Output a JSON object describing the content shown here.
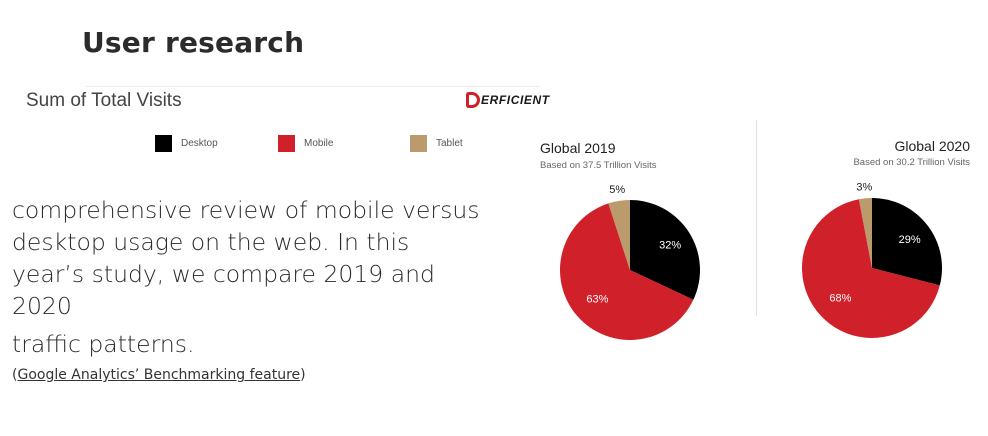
{
  "slide": {
    "title": "User research",
    "chart_heading": "Sum of Total Visits",
    "logo_text": "ERFICIENT",
    "body_lines": [
      "comprehensive review of mobile versus",
      "desktop usage on the web. In this",
      "year’s study, we compare 2019 and 2020",
      "traffic patterns."
    ],
    "source_open": "(",
    "source_link": "Google Analytics’ Benchmarking feature",
    "source_close": ")"
  },
  "legend": [
    {
      "label": "Desktop",
      "color": "#000000"
    },
    {
      "label": "Mobile",
      "color": "#d0202a"
    },
    {
      "label": "Tablet",
      "color": "#bb9a6b"
    }
  ],
  "chart_data": [
    {
      "type": "pie",
      "title": "Global 2019",
      "subtitle": "Based on 37.5 Trillion Visits",
      "labels": [
        "Desktop",
        "Mobile",
        "Tablet"
      ],
      "values": [
        32,
        63,
        5
      ],
      "value_labels": [
        "32%",
        "63%",
        "5%"
      ],
      "colors": [
        "#000000",
        "#d0202a",
        "#bb9a6b"
      ]
    },
    {
      "type": "pie",
      "title": "Global 2020",
      "subtitle": "Based on 30.2 Trillion Visits",
      "labels": [
        "Desktop",
        "Mobile",
        "Tablet"
      ],
      "values": [
        29,
        68,
        3
      ],
      "value_labels": [
        "29%",
        "68%",
        "3%"
      ],
      "colors": [
        "#000000",
        "#d0202a",
        "#bb9a6b"
      ]
    }
  ]
}
